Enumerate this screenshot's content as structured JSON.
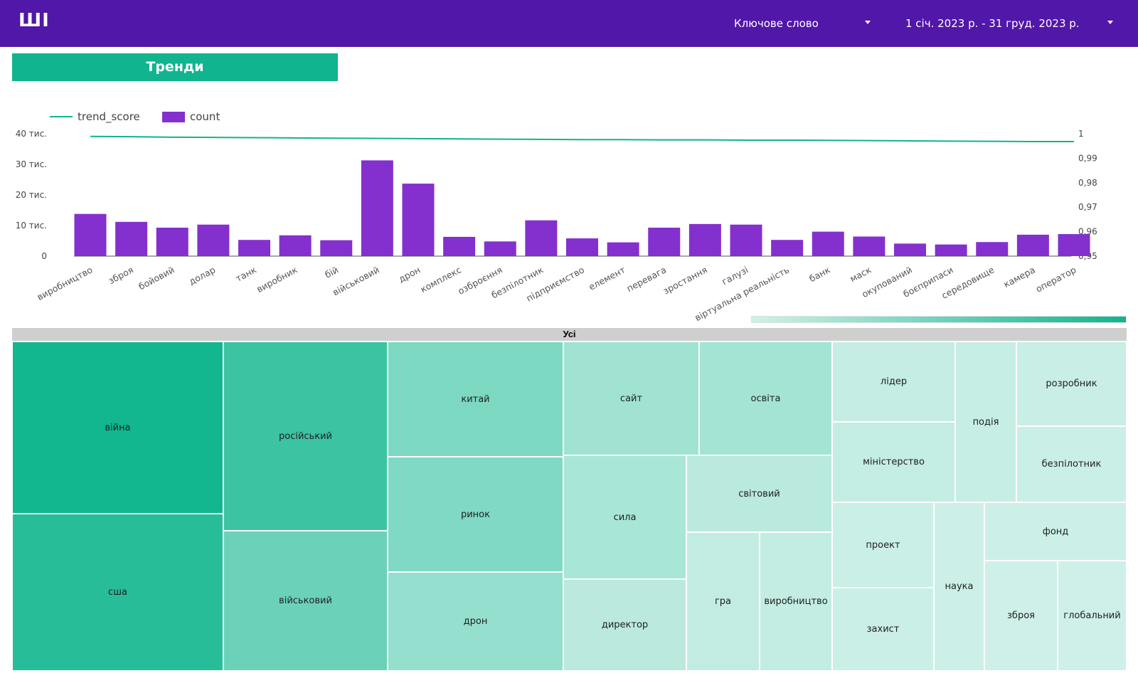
{
  "header": {
    "logo": "ШІ",
    "keyword_filter": "Ключове слово",
    "date_range": "1 січ. 2023 р. - 31 груд. 2023 р."
  },
  "section_button": "Тренди",
  "colors": {
    "header_bg": "#5117a8",
    "accent": "#10b48e",
    "bar": "#8430ce",
    "line": "#10b48e"
  },
  "chart_data": {
    "type": "bar",
    "categories": [
      "виробництво",
      "зброя",
      "бойовий",
      "долар",
      "танк",
      "виробник",
      "бій",
      "військовий",
      "дрон",
      "комплекс",
      "озброєння",
      "безпілотник",
      "підприємство",
      "елемент",
      "перевага",
      "зростання",
      "галузі",
      "віртуальна реальність",
      "банк",
      "маск",
      "окупований",
      "боєприпаси",
      "середовище",
      "камера",
      "оператор"
    ],
    "series": [
      {
        "name": "count",
        "kind": "bar",
        "axis": "left",
        "values": [
          13800,
          11200,
          9300,
          10300,
          5300,
          6800,
          5200,
          31300,
          23700,
          6300,
          4800,
          11700,
          5800,
          4500,
          9300,
          10500,
          10300,
          5300,
          8000,
          6400,
          4100,
          3800,
          4600,
          7000,
          7200
        ]
      },
      {
        "name": "trend_score",
        "kind": "line",
        "axis": "right",
        "values": [
          0.9989,
          0.9988,
          0.9986,
          0.9985,
          0.9984,
          0.9983,
          0.9982,
          0.9981,
          0.998,
          0.9979,
          0.9978,
          0.9977,
          0.9976,
          0.9976,
          0.9975,
          0.9975,
          0.9974,
          0.9974,
          0.9973,
          0.9972,
          0.9971,
          0.997,
          0.9969,
          0.9968,
          0.9968
        ]
      }
    ],
    "y_left": {
      "min": 0,
      "max": 40000,
      "ticks": [
        0,
        10000,
        20000,
        30000,
        40000
      ],
      "tick_labels": [
        "0",
        "10 тис.",
        "20 тис.",
        "30 тис.",
        "40 тис."
      ]
    },
    "y_right": {
      "min": 0.95,
      "max": 1.0,
      "ticks": [
        0.95,
        0.96,
        0.97,
        0.98,
        0.99,
        1.0
      ],
      "tick_labels": [
        "0,95",
        "0,96",
        "0,97",
        "0,98",
        "0,99",
        "1"
      ]
    },
    "legend": {
      "placement": "top-left",
      "items": [
        {
          "label": "trend_score",
          "kind": "line"
        },
        {
          "label": "count",
          "kind": "bar"
        }
      ]
    },
    "grid": false
  },
  "treemap": {
    "header": "Усі",
    "tiles": [
      {
        "label": "війна",
        "color": "#12b68f"
      },
      {
        "label": "сша",
        "color": "#27bd99"
      },
      {
        "label": "російський",
        "color": "#3bc3a2"
      },
      {
        "label": "військовий",
        "color": "#6bd2b9"
      },
      {
        "label": "китай",
        "color": "#7dd8c2"
      },
      {
        "label": "ринок",
        "color": "#80d9c4"
      },
      {
        "label": "дрон",
        "color": "#94dfcd"
      },
      {
        "label": "сайт",
        "color": "#a0e3d2"
      },
      {
        "label": "освіта",
        "color": "#a3e4d4"
      },
      {
        "label": "сила",
        "color": "#a8e6d7"
      },
      {
        "label": "світовий",
        "color": "#bae9dd"
      },
      {
        "label": "директор",
        "color": "#bce9de"
      },
      {
        "label": "гра",
        "color": "#c2ece2"
      },
      {
        "label": "виробництво",
        "color": "#c3ece2"
      },
      {
        "label": "лідер",
        "color": "#c5ede3"
      },
      {
        "label": "міністерство",
        "color": "#c4ede3"
      },
      {
        "label": "подія",
        "color": "#c7eee4"
      },
      {
        "label": "розробник",
        "color": "#c8eee5"
      },
      {
        "label": "безпілотник",
        "color": "#c9efe6"
      },
      {
        "label": "проект",
        "color": "#caefe6"
      },
      {
        "label": "захист",
        "color": "#caefe6"
      },
      {
        "label": "наука",
        "color": "#ccf0e7"
      },
      {
        "label": "фонд",
        "color": "#ccf0e7"
      },
      {
        "label": "зброя",
        "color": "#cef0e8"
      },
      {
        "label": "глобальний",
        "color": "#cef0e8"
      }
    ]
  }
}
